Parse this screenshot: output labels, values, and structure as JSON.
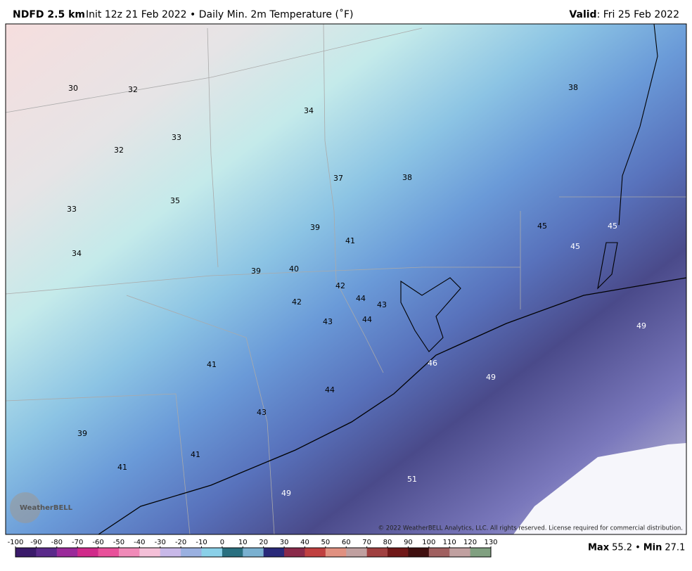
{
  "header": {
    "title": "NDFD 2.5 km",
    "subtitle": "Init 12z 21 Feb 2022 • Daily Min. 2m Temperature (˚F)",
    "valid_label": "Valid",
    "valid_value": ": Fri 25 Feb 2022"
  },
  "map_labels": [
    30,
    32,
    34,
    38,
    33,
    32,
    37,
    38,
    33,
    35,
    39,
    45,
    45,
    41,
    45,
    34,
    39,
    40,
    42,
    44,
    43,
    42,
    44,
    43,
    49,
    46,
    41,
    49,
    44,
    43,
    39,
    41,
    41,
    51,
    49
  ],
  "copyright": "© 2022 WeatherBELL Analytics, LLC. All rights reserved. License required for commercial distribution.",
  "logo": "WeatherBELL",
  "colorbar_ticks": [
    -100,
    -90,
    -80,
    -70,
    -60,
    -50,
    -40,
    -30,
    -20,
    -10,
    0,
    10,
    20,
    30,
    40,
    50,
    60,
    70,
    80,
    90,
    100,
    110,
    120,
    130
  ],
  "stats": {
    "max_label": "Max",
    "max": 55.2,
    "separator": "•",
    "min_label": "Min",
    "min": 27.1
  }
}
